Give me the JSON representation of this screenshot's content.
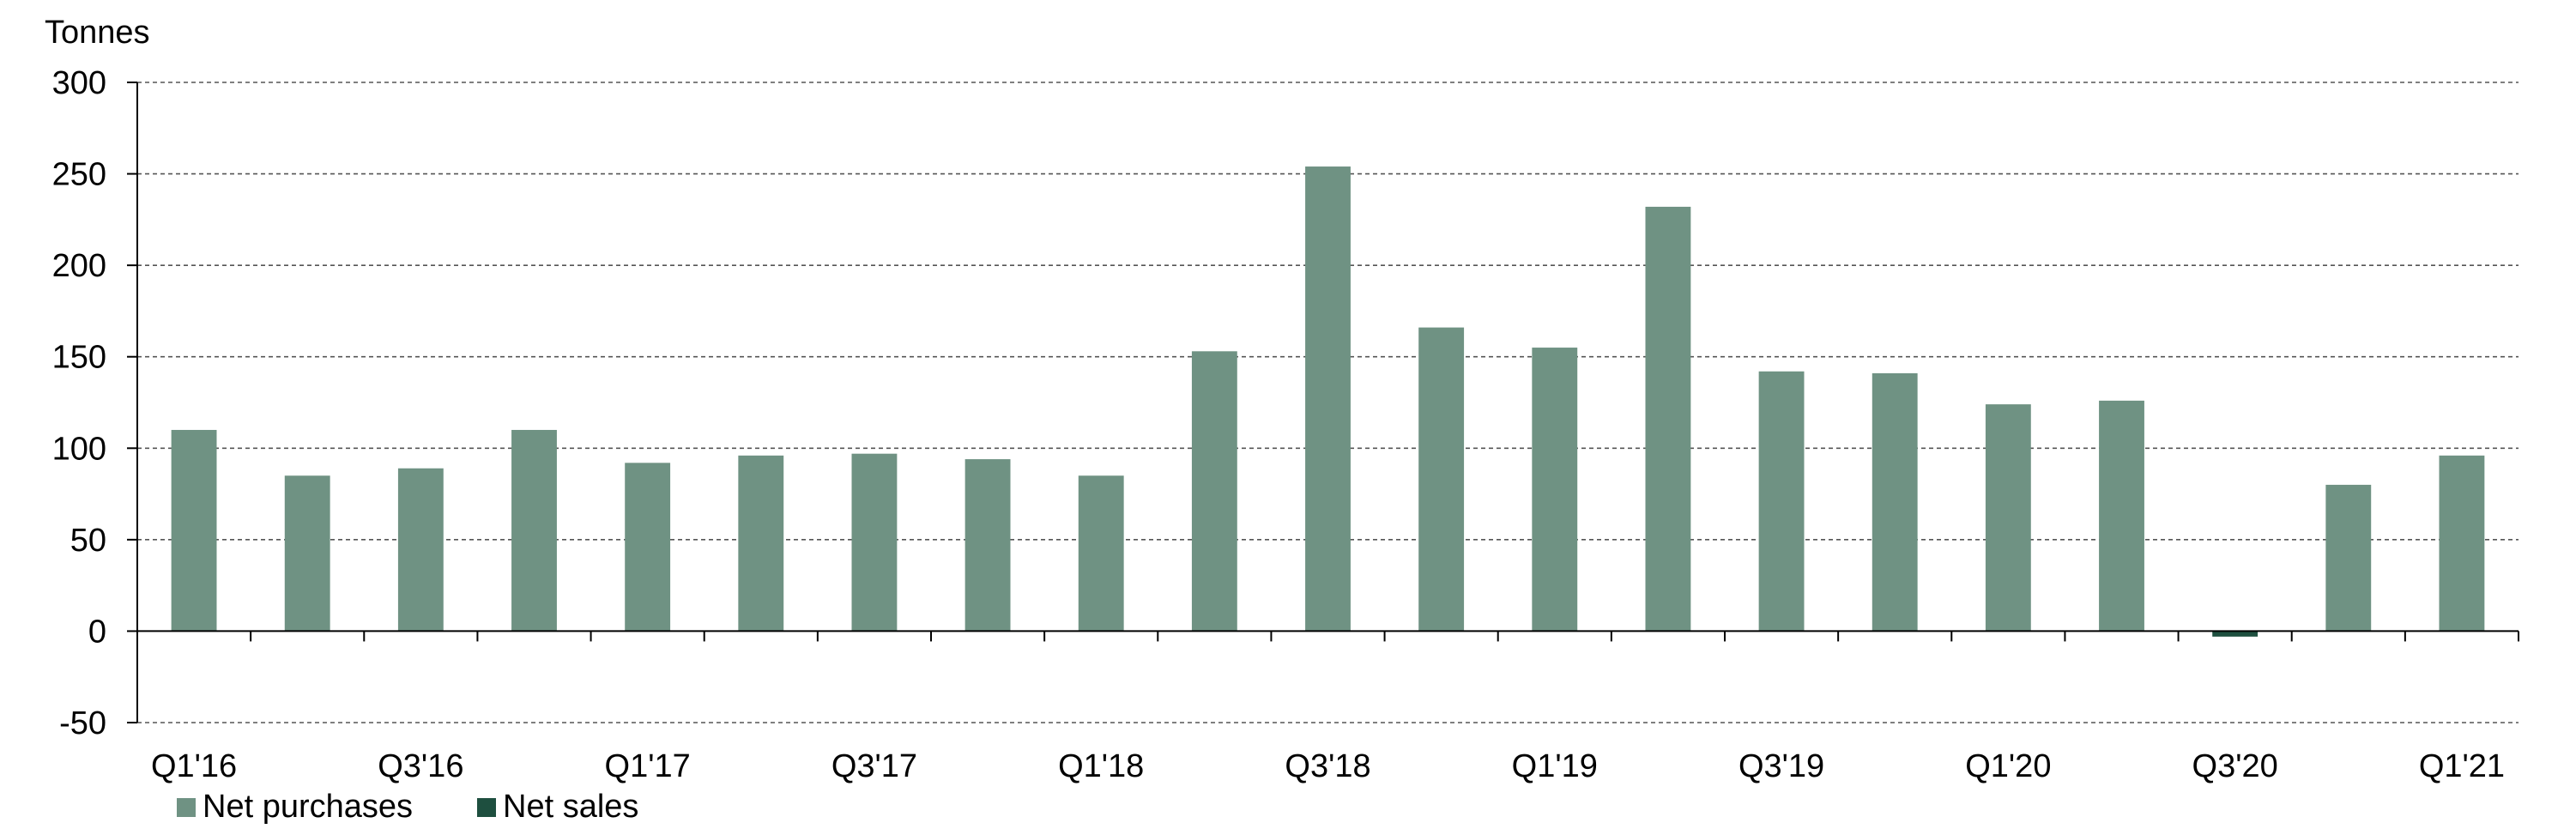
{
  "chart_data": {
    "type": "bar",
    "ylabel": "Tonnes",
    "categories": [
      "Q1'16",
      "Q2'16",
      "Q3'16",
      "Q4'16",
      "Q1'17",
      "Q2'17",
      "Q3'17",
      "Q4'17",
      "Q1'18",
      "Q2'18",
      "Q3'18",
      "Q4'18",
      "Q1'19",
      "Q2'19",
      "Q3'19",
      "Q4'19",
      "Q1'20",
      "Q2'20",
      "Q3'20",
      "Q4'20",
      "Q1'21"
    ],
    "category_labels_shown": [
      "Q1'16",
      "",
      "Q3'16",
      "",
      "Q1'17",
      "",
      "Q3'17",
      "",
      "Q1'18",
      "",
      "Q3'18",
      "",
      "Q1'19",
      "",
      "Q3'19",
      "",
      "Q1'20",
      "",
      "Q3'20",
      "",
      "Q1'21"
    ],
    "series": [
      {
        "name": "Net purchases",
        "color": "#6f9283",
        "values": [
          110,
          85,
          89,
          110,
          92,
          96,
          97,
          94,
          85,
          153,
          254,
          166,
          155,
          232,
          142,
          141,
          124,
          126,
          0,
          80,
          96
        ]
      },
      {
        "name": "Net sales",
        "color": "#1e4f3f",
        "values": [
          0,
          0,
          0,
          0,
          0,
          0,
          0,
          0,
          0,
          0,
          0,
          0,
          0,
          0,
          0,
          0,
          0,
          0,
          -3,
          0,
          0
        ]
      }
    ],
    "ylim": [
      -50,
      300
    ],
    "yticks": [
      -50,
      0,
      50,
      100,
      150,
      200,
      250,
      300
    ],
    "grid": true,
    "legend_position": "bottom-left"
  }
}
